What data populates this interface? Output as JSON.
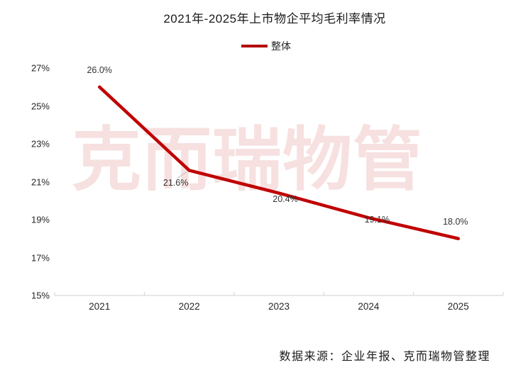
{
  "header": {
    "title": "2021年-2025年上市物企平均毛利率情况"
  },
  "legend": {
    "series_label": "整体"
  },
  "watermark": "克而瑞物管",
  "footer": {
    "source": "数据来源：企业年报、克而瑞物管整理"
  },
  "colors": {
    "line": "#c00000",
    "legend_swatch": "#b40000",
    "watermark": "rgba(192,0,0,0.12)",
    "axis": "#d9d9d9",
    "leader": "#bfbfbf"
  },
  "chart_data": {
    "type": "line",
    "title": "2021年-2025年上市物企平均毛利率情况",
    "categories": [
      "2021",
      "2022",
      "2023",
      "2024",
      "2025"
    ],
    "series": [
      {
        "name": "整体",
        "values": [
          26.0,
          21.6,
          20.4,
          19.1,
          18.0
        ]
      }
    ],
    "data_labels": [
      "26.0%",
      "21.6%",
      "20.4%",
      "19.1%",
      "18.0%"
    ],
    "xlabel": "",
    "ylabel": "",
    "ylim": [
      15,
      27
    ],
    "ytick_step": 2,
    "yticks": [
      "15%",
      "17%",
      "19%",
      "21%",
      "23%",
      "25%",
      "27%"
    ],
    "grid": false,
    "legend_position": "top"
  }
}
